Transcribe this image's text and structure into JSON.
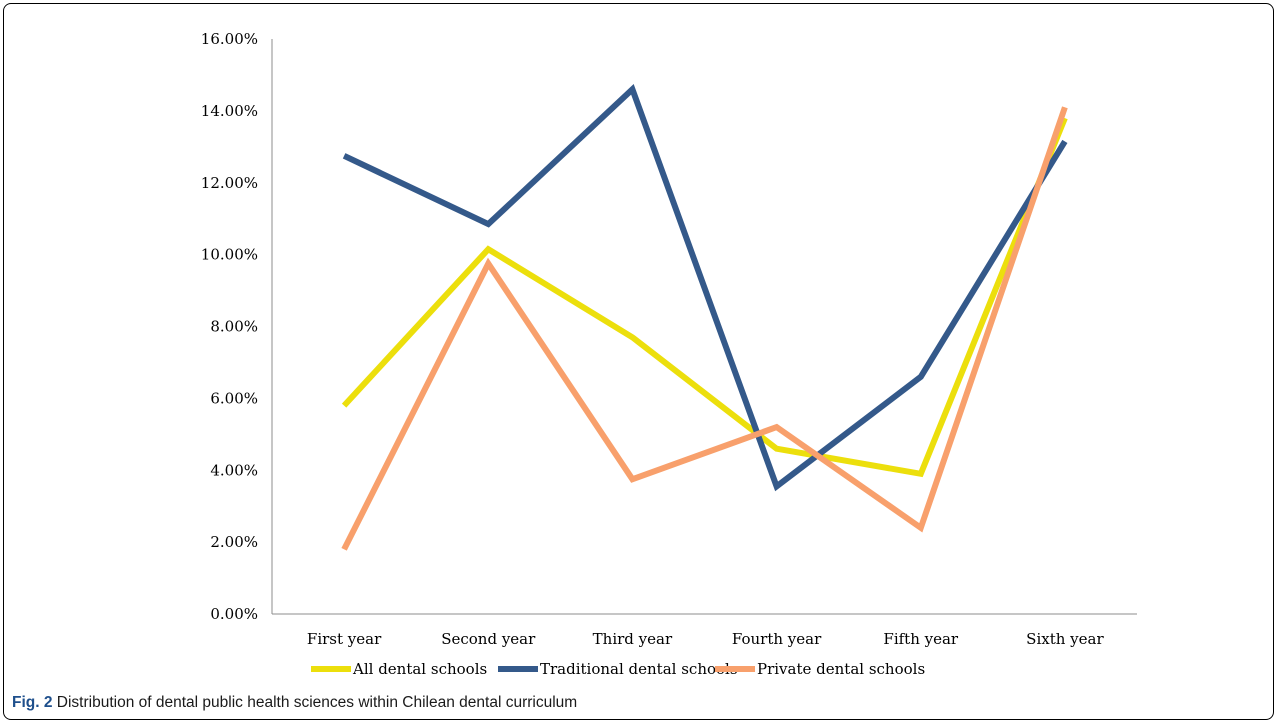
{
  "chart_data": {
    "type": "line",
    "categories": [
      "First year",
      "Second year",
      "Third year",
      "Fourth year",
      "Fifth year",
      "Sixth year"
    ],
    "ylim": [
      0,
      16
    ],
    "yticks": [
      "0.00%",
      "2.00%",
      "4.00%",
      "6.00%",
      "8.00%",
      "10.00%",
      "12.00%",
      "14.00%",
      "16.00%"
    ],
    "ytick_values": [
      0,
      2,
      4,
      6,
      8,
      10,
      12,
      14,
      16
    ],
    "grid": false,
    "legend_position": "bottom",
    "series": [
      {
        "name": "All dental schools",
        "color": "#ecdf0c",
        "values": [
          5.8,
          10.15,
          7.7,
          4.6,
          3.9,
          13.8
        ]
      },
      {
        "name": "Traditional dental schools",
        "color": "#34598a",
        "values": [
          12.75,
          10.85,
          14.6,
          3.55,
          6.6,
          13.15
        ]
      },
      {
        "name": "Private dental schools",
        "color": "#f8a06c",
        "values": [
          1.8,
          9.75,
          3.75,
          5.2,
          2.4,
          14.1
        ]
      }
    ]
  },
  "caption": {
    "label": "Fig. 2",
    "text": " Distribution of dental public health sciences within Chilean dental curriculum"
  }
}
